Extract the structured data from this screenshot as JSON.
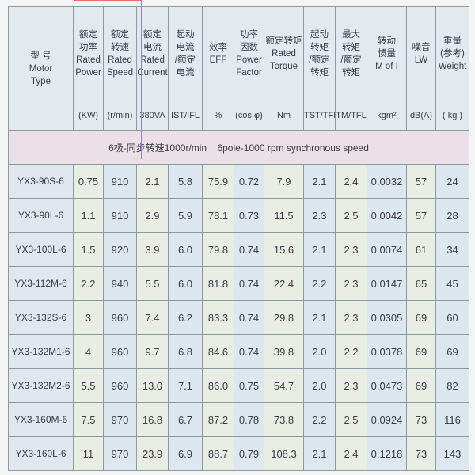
{
  "header": [
    {
      "lines": [
        "型 号",
        "Motor",
        "Type"
      ]
    },
    {
      "lines": [
        "额定",
        "功率",
        "Rated",
        "Power"
      ],
      "unit": "(KW)"
    },
    {
      "lines": [
        "额定",
        "转速",
        "Rated",
        "Speed"
      ],
      "unit": "(r/min)"
    },
    {
      "lines": [
        "额定",
        "电流",
        "Rated",
        "Current"
      ],
      "unit": "380VA"
    },
    {
      "lines": [
        "起动",
        "电流",
        "/额定",
        "电流"
      ],
      "unit": "IST/IFL"
    },
    {
      "lines": [
        "效率",
        "EFF"
      ],
      "unit": "%"
    },
    {
      "lines": [
        "功率",
        "因数",
        "Power",
        "Factor"
      ],
      "unit": "(cos φ)"
    },
    {
      "lines": [
        "额定转矩",
        "Rated",
        "Torque"
      ],
      "unit": "Nm"
    },
    {
      "lines": [
        "起动",
        "转矩",
        "/额定",
        "转矩"
      ],
      "unit": "TST/TFL"
    },
    {
      "lines": [
        "最大",
        "转矩",
        "/额定",
        "转矩"
      ],
      "unit": "TM/TFL"
    },
    {
      "lines": [
        "转动",
        "惯量",
        "M of I"
      ],
      "unit": "kgm²"
    },
    {
      "lines": [
        "噪音",
        "LW"
      ],
      "unit": "dB(A)"
    },
    {
      "lines": [
        "重量",
        "(参考)",
        "Weight"
      ],
      "unit": "( kg )"
    }
  ],
  "section": "6极-同步转速1000r/min    6pole-1000 rpm synchronous speed",
  "rows": [
    [
      "YX3-90S-6",
      "0.75",
      "910",
      "2.1",
      "5.8",
      "75.9",
      "0.72",
      "7.9",
      "2.1",
      "2.4",
      "0.0032",
      "57",
      "24"
    ],
    [
      "YX3-90L-6",
      "1.1",
      "910",
      "2.9",
      "5.9",
      "78.1",
      "0.73",
      "11.5",
      "2.3",
      "2.5",
      "0.0042",
      "57",
      "28"
    ],
    [
      "YX3-100L-6",
      "1.5",
      "920",
      "3.9",
      "6.0",
      "79.8",
      "0.74",
      "15.6",
      "2.1",
      "2.3",
      "0.0074",
      "61",
      "34"
    ],
    [
      "YX3-112M-6",
      "2.2",
      "940",
      "5.5",
      "6.0",
      "81.8",
      "0.74",
      "22.4",
      "2.2",
      "2.3",
      "0.0147",
      "65",
      "45"
    ],
    [
      "YX3-132S-6",
      "3",
      "960",
      "7.4",
      "6.2",
      "83.3",
      "0.74",
      "29.8",
      "2.1",
      "2.3",
      "0.0305",
      "69",
      "60"
    ],
    [
      "YX3-132M1-6",
      "4",
      "960",
      "9.7",
      "6.8",
      "84.6",
      "0.74",
      "39.8",
      "2.0",
      "2.2",
      "0.0378",
      "69",
      "69"
    ],
    [
      "YX3-132M2-6",
      "5.5",
      "960",
      "13.0",
      "7.1",
      "86.0",
      "0.75",
      "54.7",
      "2.0",
      "2.3",
      "0.0473",
      "69",
      "82"
    ],
    [
      "YX3-160M-6",
      "7.5",
      "970",
      "16.8",
      "6.7",
      "87.2",
      "0.78",
      "73.8",
      "2.2",
      "2.5",
      "0.0924",
      "73",
      "116"
    ],
    [
      "YX3-160L-6",
      "11",
      "970",
      "23.9",
      "6.9",
      "88.7",
      "0.79",
      "108.3",
      "2.1",
      "2.4",
      "0.1218",
      "73",
      "143"
    ]
  ]
}
